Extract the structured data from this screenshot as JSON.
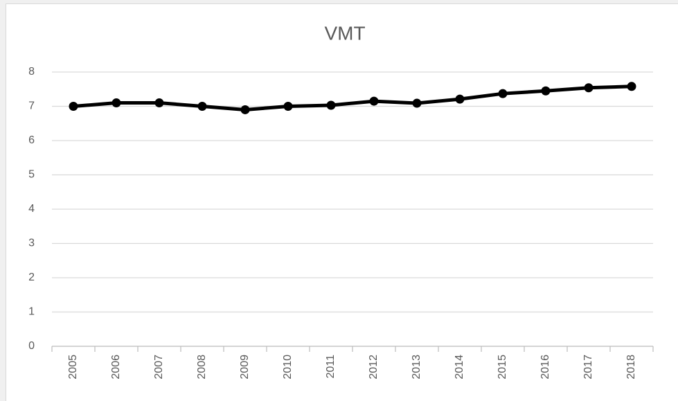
{
  "chart_data": {
    "type": "line",
    "title": "VMT",
    "categories": [
      "2005",
      "2006",
      "2007",
      "2008",
      "2009",
      "2010",
      "2011",
      "2012",
      "2013",
      "2014",
      "2015",
      "2016",
      "2017",
      "2018"
    ],
    "values": [
      7.0,
      7.1,
      7.1,
      7.0,
      6.9,
      7.0,
      7.03,
      7.15,
      7.09,
      7.21,
      7.37,
      7.45,
      7.54,
      7.58
    ],
    "color": "#000000",
    "ylim": [
      0,
      8
    ],
    "yticks": [
      0,
      1,
      2,
      3,
      4,
      5,
      6,
      7,
      8
    ],
    "grid": true
  }
}
